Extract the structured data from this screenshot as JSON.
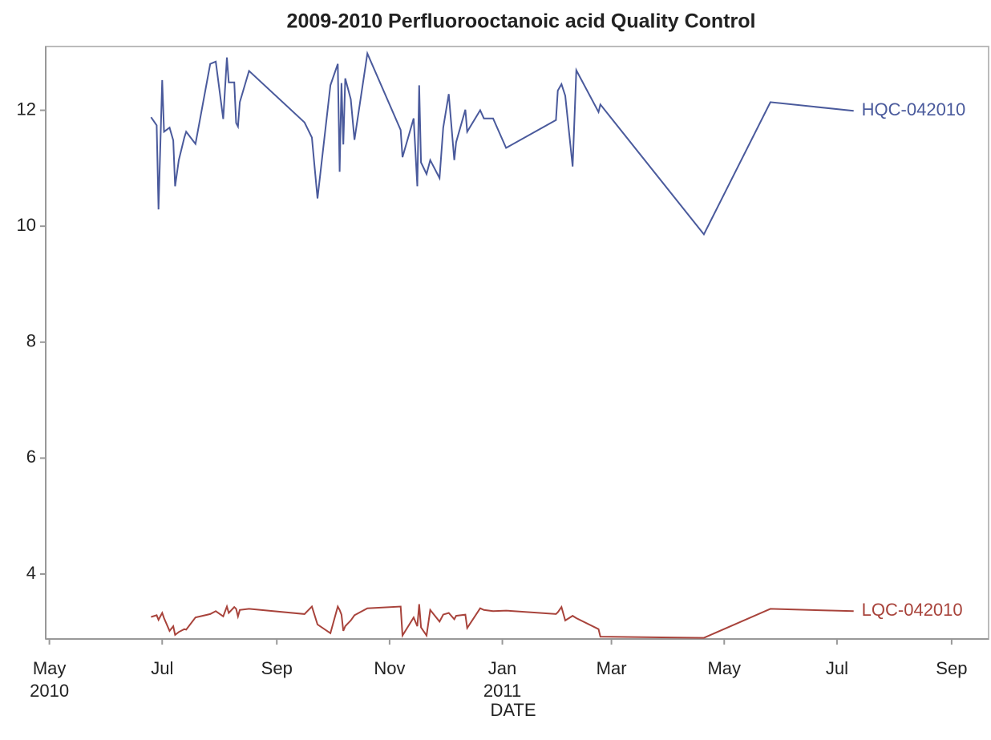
{
  "chart_data": {
    "type": "line",
    "title": "2009-2010 Perfluorooctanoic acid Quality Control",
    "x_label": "DATE",
    "x": [
      "2010-06-25",
      "2010-06-28",
      "2010-06-29",
      "2010-07-01",
      "2010-07-02",
      "2010-07-05",
      "2010-07-07",
      "2010-07-08",
      "2010-07-10",
      "2010-07-13",
      "2010-07-14",
      "2010-07-19",
      "2010-07-27",
      "2010-07-30",
      "2010-08-03",
      "2010-08-05",
      "2010-08-06",
      "2010-08-09",
      "2010-08-10",
      "2010-08-11",
      "2010-08-12",
      "2010-08-17",
      "2010-09-16",
      "2010-09-20",
      "2010-09-23",
      "2010-09-30",
      "2010-10-04",
      "2010-10-05",
      "2010-10-06",
      "2010-10-07",
      "2010-10-08",
      "2010-10-11",
      "2010-10-13",
      "2010-10-20",
      "2010-11-07",
      "2010-11-08",
      "2010-11-14",
      "2010-11-16",
      "2010-11-17",
      "2010-11-18",
      "2010-11-21",
      "2010-11-23",
      "2010-11-28",
      "2010-11-30",
      "2010-12-03",
      "2010-12-06",
      "2010-12-07",
      "2010-12-12",
      "2010-12-13",
      "2010-12-20",
      "2010-12-22",
      "2010-12-27",
      "2011-01-03",
      "2011-01-30",
      "2011-01-31",
      "2011-02-02",
      "2011-02-04",
      "2011-02-08",
      "2011-02-10",
      "2011-02-22",
      "2011-02-23",
      "2011-04-20",
      "2011-05-26",
      "2011-07-10"
    ],
    "series": [
      {
        "name": "HQC-042010",
        "color": "#4a5a9c",
        "values": [
          11.88,
          11.74,
          10.29,
          12.52,
          11.63,
          11.7,
          11.48,
          10.69,
          11.14,
          11.53,
          11.63,
          11.42,
          12.8,
          12.84,
          11.85,
          12.91,
          12.48,
          12.48,
          11.78,
          11.72,
          12.14,
          12.68,
          11.79,
          11.53,
          10.48,
          12.43,
          12.8,
          10.94,
          12.47,
          11.41,
          12.55,
          12.19,
          11.49,
          12.98,
          11.66,
          11.19,
          11.86,
          10.69,
          12.43,
          11.1,
          10.9,
          11.14,
          10.83,
          11.7,
          12.28,
          11.14,
          11.45,
          12.01,
          11.63,
          12.0,
          11.86,
          11.86,
          11.35,
          11.83,
          12.34,
          12.45,
          12.25,
          11.03,
          12.69,
          11.97,
          12.1,
          9.86,
          12.14,
          11.99
        ]
      },
      {
        "name": "LQC-042010",
        "color": "#a8433b",
        "values": [
          3.26,
          3.29,
          3.21,
          3.33,
          3.24,
          3.02,
          3.1,
          2.95,
          3.0,
          3.05,
          3.04,
          3.25,
          3.31,
          3.36,
          3.27,
          3.44,
          3.33,
          3.43,
          3.4,
          3.27,
          3.38,
          3.4,
          3.31,
          3.44,
          3.13,
          2.98,
          3.44,
          3.38,
          3.3,
          3.02,
          3.1,
          3.2,
          3.29,
          3.41,
          3.44,
          2.94,
          3.25,
          3.1,
          3.48,
          3.08,
          2.94,
          3.38,
          3.18,
          3.3,
          3.33,
          3.22,
          3.28,
          3.3,
          3.07,
          3.41,
          3.38,
          3.36,
          3.37,
          3.31,
          3.34,
          3.43,
          3.2,
          3.28,
          3.24,
          3.05,
          2.92,
          2.9,
          3.4,
          3.36
        ]
      }
    ],
    "xlim": [
      "2010-04-29",
      "2011-09-21"
    ],
    "xticks": [
      {
        "value": "2010-05-01",
        "label": "May 2010"
      },
      {
        "value": "2010-07-01",
        "label": "Jul"
      },
      {
        "value": "2010-09-01",
        "label": "Sep"
      },
      {
        "value": "2010-11-01",
        "label": "Nov"
      },
      {
        "value": "2011-01-01",
        "label": "Jan 2011"
      },
      {
        "value": "2011-03-01",
        "label": "Mar"
      },
      {
        "value": "2011-05-01",
        "label": "May"
      },
      {
        "value": "2011-07-01",
        "label": "Jul"
      },
      {
        "value": "2011-09-01",
        "label": "Sep"
      }
    ],
    "ylim": [
      2.88,
      13.1
    ],
    "yticks": [
      4,
      6,
      8,
      10,
      12
    ],
    "grid": false
  }
}
